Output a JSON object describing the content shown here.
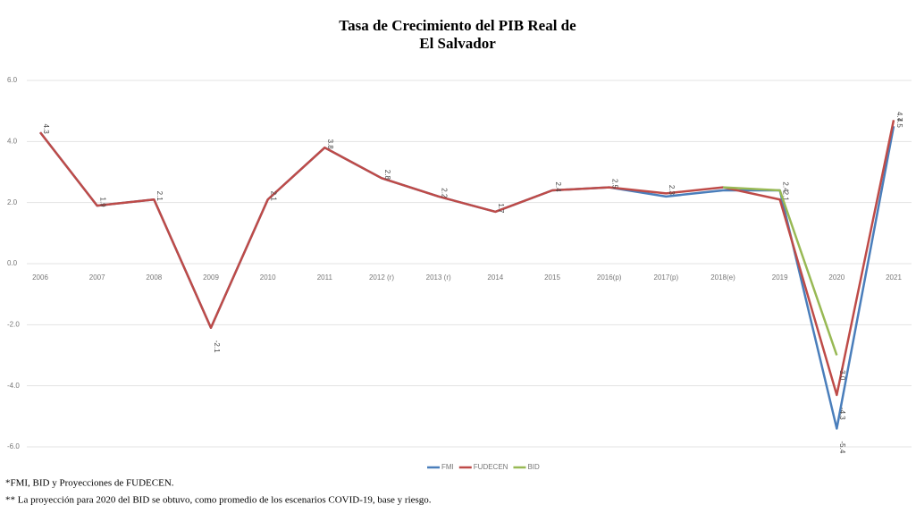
{
  "chart_data": {
    "type": "line",
    "title": [
      "Tasa de Crecimiento del PIB Real de",
      "El Salvador"
    ],
    "categories": [
      "2006",
      "2007",
      "2008",
      "2009",
      "2010",
      "2011",
      "2012 (r)",
      "2013 (r)",
      "2014",
      "2015",
      "2016(p)",
      "2017(p)",
      "2018(e)",
      "2019",
      "2020",
      "2021"
    ],
    "series": [
      {
        "name": "FMI",
        "color": "#4a7ebb",
        "values": [
          4.3,
          1.9,
          2.1,
          -2.1,
          2.1,
          3.8,
          2.8,
          2.2,
          1.7,
          2.4,
          2.5,
          2.2,
          2.4,
          2.4,
          -5.4,
          4.5
        ],
        "value_labels": [
          null,
          null,
          null,
          null,
          null,
          null,
          null,
          null,
          null,
          null,
          null,
          null,
          null,
          null,
          "-5.4",
          "4.5"
        ]
      },
      {
        "name": "FUDECEN",
        "color": "#be4b48",
        "values": [
          4.3,
          1.9,
          2.1,
          -2.1,
          2.1,
          3.8,
          2.8,
          2.2,
          1.7,
          2.4,
          2.5,
          2.3,
          2.5,
          2.1,
          -4.3,
          4.7
        ],
        "value_labels": [
          "4.3",
          "1.9",
          "2.1",
          "-2.1",
          "2.1",
          "3.8",
          "2.8",
          "2.2",
          "1.7",
          "2.4",
          "2.5",
          "2.3",
          null,
          "2.1",
          "-4.3",
          "4.7"
        ]
      },
      {
        "name": "BID",
        "color": "#98b954",
        "values": [
          null,
          null,
          null,
          null,
          null,
          null,
          null,
          null,
          null,
          null,
          null,
          null,
          2.5,
          2.4,
          -3.0,
          null
        ],
        "value_labels": [
          null,
          null,
          null,
          null,
          null,
          null,
          null,
          null,
          null,
          null,
          null,
          null,
          null,
          "2.4",
          "-3.0",
          null
        ]
      }
    ],
    "ylim": [
      -6,
      6
    ],
    "yticks": [
      {
        "value": 6,
        "label": "6.0"
      },
      {
        "value": 4,
        "label": "4.0"
      },
      {
        "value": 2,
        "label": "2.0"
      },
      {
        "value": 0,
        "label": "0.0"
      },
      {
        "value": -2,
        "label": "-2.0"
      },
      {
        "value": -4,
        "label": "-4.0"
      },
      {
        "value": -6,
        "label": "-6.0"
      }
    ],
    "grid": true,
    "legend": "bottom",
    "notes": [
      "*FMI, BID y Proyecciones  de FUDECEN.",
      "** La proyección para 2020 del BID se obtuvo, como promedio de los escenarios COVID-19, base y riesgo."
    ]
  }
}
